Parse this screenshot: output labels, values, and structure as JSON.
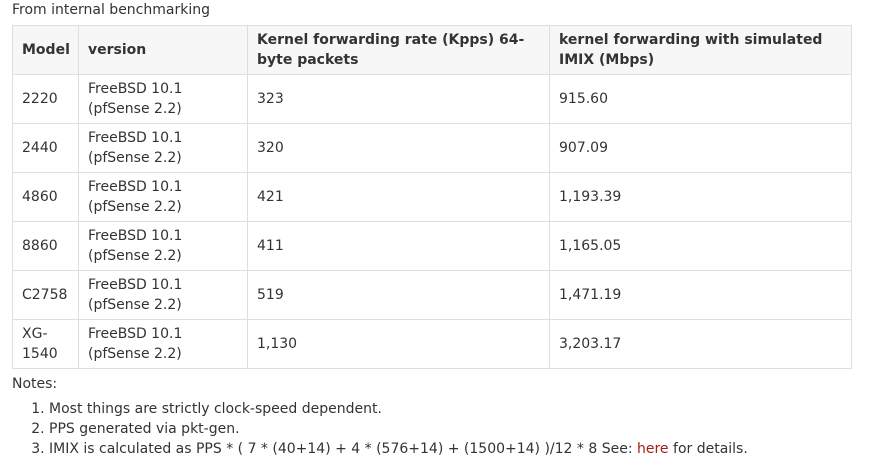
{
  "caption": "From internal benchmarking",
  "table": {
    "headers": [
      "Model",
      "version",
      "Kernel forwarding rate (Kpps) 64-byte packets",
      "kernel forwarding with simulated IMIX (Mbps)"
    ],
    "rows": [
      {
        "model": "2220",
        "version_os": "FreeBSD 10.1",
        "version_pf": "(pfSense 2.2)",
        "kpps": "323",
        "mbps": "915.60"
      },
      {
        "model": "2440",
        "version_os": "FreeBSD 10.1",
        "version_pf": "(pfSense 2.2)",
        "kpps": "320",
        "mbps": "907.09"
      },
      {
        "model": "4860",
        "version_os": "FreeBSD 10.1",
        "version_pf": "(pfSense 2.2)",
        "kpps": "421",
        "mbps": "1,193.39"
      },
      {
        "model": "8860",
        "version_os": "FreeBSD 10.1",
        "version_pf": "(pfSense 2.2)",
        "kpps": "411",
        "mbps": "1,165.05"
      },
      {
        "model": "C2758",
        "version_os": "FreeBSD 10.1",
        "version_pf": "(pfSense 2.2)",
        "kpps": "519",
        "mbps": "1,471.19"
      },
      {
        "model": "XG-1540",
        "version_os": "FreeBSD 10.1",
        "version_pf": "(pfSense 2.2)",
        "kpps": "1,130",
        "mbps": "3,203.17"
      }
    ]
  },
  "notes": {
    "title": "Notes:",
    "items": [
      "Most things are strictly clock-speed dependent.",
      "PPS generated via pkt-gen."
    ],
    "item3_prefix": "IMIX is calculated as PPS * ( 7 * (40+14) + 4 * (576+14) + (1500+14) )/12 * 8 See: ",
    "item3_link": "here",
    "item3_suffix": " for details."
  },
  "colors": {
    "link": "#a0201a",
    "border": "#dedede",
    "header_bg": "#f7f7f7",
    "text": "#333333"
  }
}
